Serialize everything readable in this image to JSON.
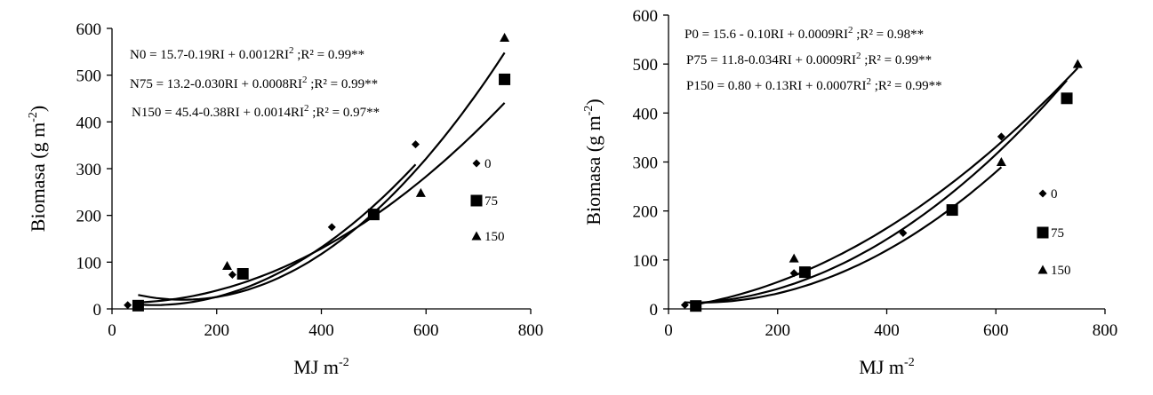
{
  "chart_data": [
    {
      "type": "scatter",
      "xlabel": "MJ m",
      "xlabel_sup": "-2",
      "ylabel": "Biomasa (g m",
      "ylabel_sup": "-2",
      "ylabel_close": ")",
      "xlim": [
        0,
        800
      ],
      "ylim": [
        0,
        600
      ],
      "xticks": [
        "0",
        "200",
        "400",
        "600",
        "800"
      ],
      "yticks": [
        "0",
        "100",
        "200",
        "300",
        "400",
        "500",
        "600"
      ],
      "equations": [
        {
          "pre": "N0 = 15.7-0.19RI + 0.0012RI",
          "sup": "2",
          "post": " ;R² = 0.99**"
        },
        {
          "pre": "N75 = 13.2-0.030RI + 0.0008RI",
          "sup": "2",
          "post": " ;R² = 0.99**"
        },
        {
          "pre": "N150 = 45.4-0.38RI + 0.0014RI",
          "sup": "2",
          "post": " ;R² = 0.97**"
        }
      ],
      "series": [
        {
          "name": "0",
          "marker": "diamond",
          "a": 15.7,
          "b": -0.19,
          "c": 0.0012,
          "fit_x": [
            50,
            580
          ],
          "points": [
            {
              "x": 30,
              "y": 8
            },
            {
              "x": 230,
              "y": 73
            },
            {
              "x": 420,
              "y": 175
            },
            {
              "x": 580,
              "y": 352
            }
          ]
        },
        {
          "name": "75",
          "marker": "square",
          "a": 13.2,
          "b": -0.03,
          "c": 0.0008,
          "fit_x": [
            50,
            750
          ],
          "points": [
            {
              "x": 50,
              "y": 7
            },
            {
              "x": 250,
              "y": 75
            },
            {
              "x": 500,
              "y": 202
            },
            {
              "x": 750,
              "y": 491
            }
          ]
        },
        {
          "name": "150",
          "marker": "triangle",
          "a": 45.4,
          "b": -0.38,
          "c": 0.0014,
          "fit_x": [
            50,
            750
          ],
          "points": [
            {
              "x": 220,
              "y": 92
            },
            {
              "x": 590,
              "y": 248
            },
            {
              "x": 750,
              "y": 580
            }
          ]
        }
      ]
    },
    {
      "type": "scatter",
      "xlabel": "MJ m",
      "xlabel_sup": "-2",
      "ylabel": "Biomasa (g m",
      "ylabel_sup": "-2",
      "ylabel_close": ")",
      "xlim": [
        0,
        800
      ],
      "ylim": [
        0,
        600
      ],
      "xticks": [
        "0",
        "200",
        "400",
        "600",
        "800"
      ],
      "yticks": [
        "0",
        "100",
        "200",
        "300",
        "400",
        "500",
        "600"
      ],
      "equations": [
        {
          "pre": "P0 = 15.6 - 0.10RI + 0.0009RI",
          "sup": "2",
          "post": " ;R² = 0.98**"
        },
        {
          "pre": "P75 = 11.8-0.034RI + 0.0009RI",
          "sup": "2",
          "post": " ;R² = 0.99**"
        },
        {
          "pre": "P150 = 0.80 + 0.13RI + 0.0007RI",
          "sup": "2",
          "post": " ;R² = 0.99**"
        }
      ],
      "series": [
        {
          "name": "0",
          "marker": "diamond",
          "a": 15.6,
          "b": -0.1,
          "c": 0.0009,
          "fit_x": [
            30,
            610
          ],
          "points": [
            {
              "x": 30,
              "y": 8
            },
            {
              "x": 230,
              "y": 73
            },
            {
              "x": 430,
              "y": 155
            },
            {
              "x": 610,
              "y": 352
            }
          ]
        },
        {
          "name": "75",
          "marker": "square",
          "a": 11.8,
          "b": -0.034,
          "c": 0.0009,
          "fit_x": [
            50,
            730
          ],
          "points": [
            {
              "x": 50,
              "y": 6
            },
            {
              "x": 250,
              "y": 75
            },
            {
              "x": 520,
              "y": 202
            },
            {
              "x": 730,
              "y": 430
            }
          ]
        },
        {
          "name": "150",
          "marker": "triangle",
          "a": 0.8,
          "b": 0.13,
          "c": 0.0007,
          "fit_x": [
            50,
            750
          ],
          "points": [
            {
              "x": 230,
              "y": 103
            },
            {
              "x": 610,
              "y": 300
            },
            {
              "x": 750,
              "y": 500
            }
          ]
        }
      ]
    }
  ]
}
